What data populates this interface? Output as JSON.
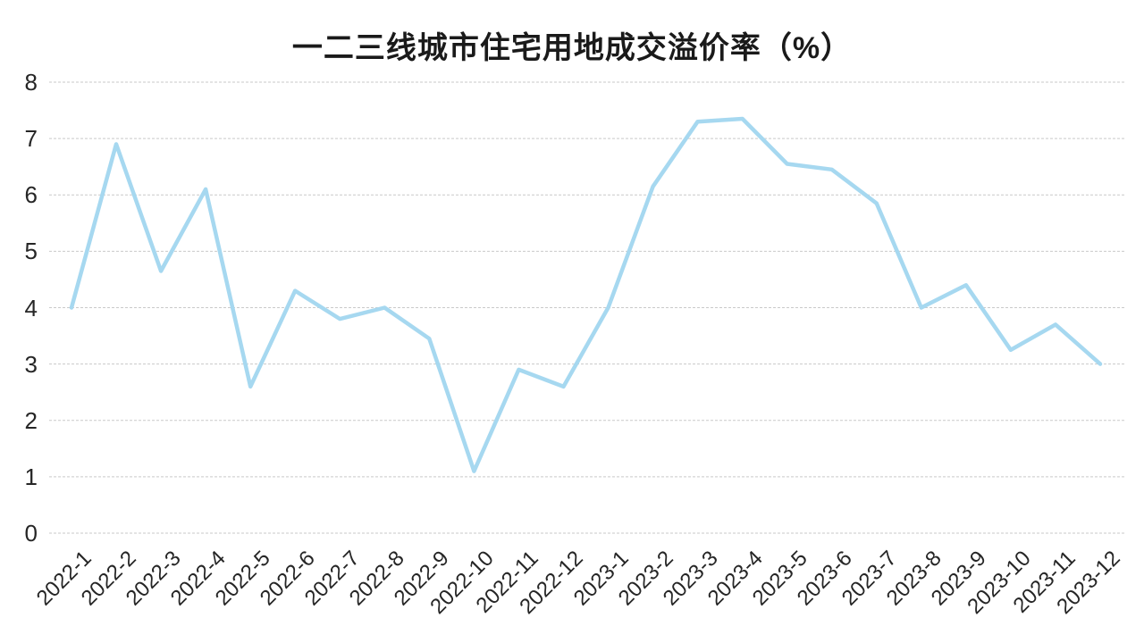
{
  "chart_data": {
    "type": "line",
    "title": "一二三线城市住宅用地成交溢价率（%）",
    "categories": [
      "2022-1",
      "2022-2",
      "2022-3",
      "2022-4",
      "2022-5",
      "2022-6",
      "2022-7",
      "2022-8",
      "2022-9",
      "2022-10",
      "2022-11",
      "2022-12",
      "2023-1",
      "2023-2",
      "2023-3",
      "2023-4",
      "2023-5",
      "2023-6",
      "2023-7",
      "2023-8",
      "2023-9",
      "2023-10",
      "2023-11",
      "2023-12"
    ],
    "values": [
      4.0,
      6.9,
      4.65,
      6.1,
      2.6,
      4.3,
      3.8,
      4.0,
      3.45,
      1.1,
      2.9,
      2.6,
      4.0,
      6.15,
      7.3,
      7.35,
      6.55,
      6.45,
      5.85,
      4.0,
      4.4,
      3.25,
      3.7,
      3.0
    ],
    "xlabel": "",
    "ylabel": "",
    "ylim": [
      0,
      8
    ],
    "yticks": [
      0,
      1,
      2,
      3,
      4,
      5,
      6,
      7,
      8
    ],
    "grid": "horizontal-dashed",
    "legend": "none",
    "colors": {
      "line": "#a6d8f0",
      "gridline": "#c9c9c9",
      "title": "#1a1a1a",
      "axis_labels": "#262626",
      "background": "#ffffff"
    }
  }
}
